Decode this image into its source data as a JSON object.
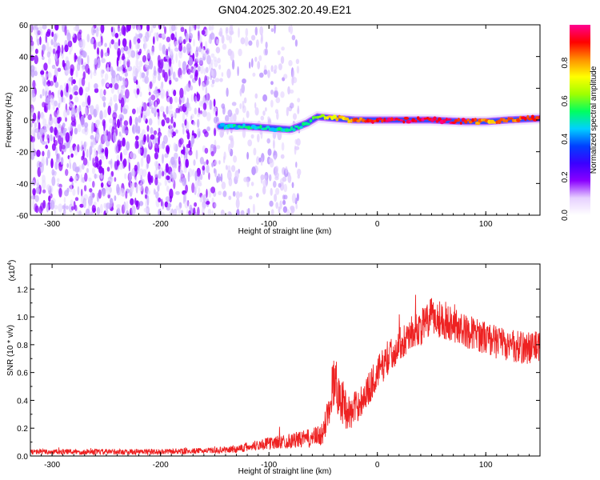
{
  "title": "GN04.2025.302.20.49.E21",
  "colorbar": {
    "label": "Normalized spectral amplitude",
    "ticks": [
      0.0,
      0.2,
      0.4,
      0.6,
      0.8
    ],
    "tick_labels": [
      "0.0",
      "0.2",
      "0.4",
      "0.6",
      "0.8"
    ],
    "range": [
      0,
      1
    ],
    "colormap": [
      "#ffffff",
      "#e6d0ff",
      "#8a00ff",
      "#3a00ff",
      "#0040ff",
      "#00d0ff",
      "#00ff60",
      "#a0ff00",
      "#ffff00",
      "#ff9000",
      "#ff0000",
      "#ff0090"
    ]
  },
  "chart_data": [
    {
      "type": "heatmap",
      "xlabel": "Height of straight line (km)",
      "ylabel": "Frequency (Hz)",
      "xlim": [
        -320,
        150
      ],
      "ylim": [
        -60,
        60
      ],
      "x_ticks": [
        -300,
        -200,
        -100,
        0,
        100
      ],
      "x_tick_labels": [
        "-300",
        "-200",
        "-100",
        "0",
        "100"
      ],
      "y_ticks": [
        -60,
        -40,
        -20,
        0,
        20,
        40,
        60
      ],
      "y_tick_labels": [
        "-60",
        "-40",
        "-20",
        "0",
        "20",
        "40",
        "60"
      ],
      "regions": [
        {
          "x_range": [
            -320,
            -148
          ],
          "f_range": [
            -60,
            60
          ],
          "amplitude": 0.05,
          "pattern": "dense noise"
        },
        {
          "x_range": [
            -148,
            -72
          ],
          "f_range": [
            -60,
            60
          ],
          "amplitude": 0.02,
          "pattern": "sparse noise"
        },
        {
          "x_range": [
            -72,
            150
          ],
          "f_range": [
            -60,
            60
          ],
          "amplitude": 0.0,
          "pattern": "empty"
        }
      ],
      "ridge": {
        "x": [
          -145,
          -120,
          -100,
          -80,
          -65,
          -55,
          -40,
          -20,
          0,
          20,
          50,
          80,
          100,
          120,
          150
        ],
        "freq": [
          -4,
          -4,
          -5,
          -6,
          -2,
          2,
          1,
          0,
          0,
          0,
          0,
          -1,
          -1,
          0,
          1
        ],
        "amplitude": [
          0.45,
          0.5,
          0.48,
          0.5,
          0.55,
          0.6,
          0.75,
          0.85,
          0.9,
          0.95,
          0.95,
          0.9,
          0.8,
          0.85,
          0.9
        ]
      }
    },
    {
      "type": "line",
      "xlabel": "Height of straight line (km)",
      "ylabel": "SNR (10 * v/v)",
      "y_multiplier": "(x10",
      "y_multiplier_exp": "4",
      "y_multiplier_close": ")",
      "xlim": [
        -320,
        150
      ],
      "ylim": [
        0,
        1.38
      ],
      "x_ticks": [
        -300,
        -200,
        -100,
        0,
        100
      ],
      "x_tick_labels": [
        "-300",
        "-200",
        "-100",
        "0",
        "100"
      ],
      "y_ticks": [
        0.0,
        0.2,
        0.4,
        0.6,
        0.8,
        1.0,
        1.2
      ],
      "y_tick_labels": [
        "0.0",
        "0.2",
        "0.4",
        "0.6",
        "0.8",
        "1.0",
        "1.2"
      ],
      "series": [
        {
          "color": "#ee2222",
          "x": [
            -320,
            -250,
            -200,
            -150,
            -130,
            -110,
            -90,
            -70,
            -60,
            -50,
            -45,
            -40,
            -35,
            -30,
            -25,
            -20,
            -10,
            0,
            10,
            20,
            30,
            40,
            50,
            60,
            70,
            80,
            90,
            100,
            110,
            120,
            130,
            140,
            150
          ],
          "y": [
            0.03,
            0.03,
            0.03,
            0.04,
            0.05,
            0.08,
            0.1,
            0.12,
            0.13,
            0.15,
            0.35,
            0.55,
            0.45,
            0.35,
            0.3,
            0.35,
            0.45,
            0.6,
            0.7,
            0.8,
            0.88,
            0.92,
            1.0,
            0.98,
            0.95,
            0.9,
            0.88,
            0.85,
            0.82,
            0.8,
            0.78,
            0.78,
            0.78
          ],
          "noise": [
            0.02,
            0.02,
            0.02,
            0.02,
            0.03,
            0.04,
            0.05,
            0.06,
            0.07,
            0.08,
            0.15,
            0.2,
            0.18,
            0.15,
            0.12,
            0.12,
            0.12,
            0.12,
            0.12,
            0.12,
            0.12,
            0.13,
            0.14,
            0.14,
            0.13,
            0.12,
            0.12,
            0.12,
            0.12,
            0.12,
            0.12,
            0.12,
            0.12
          ]
        }
      ]
    }
  ]
}
